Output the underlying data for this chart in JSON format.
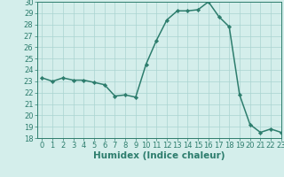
{
  "x": [
    0,
    1,
    2,
    3,
    4,
    5,
    6,
    7,
    8,
    9,
    10,
    11,
    12,
    13,
    14,
    15,
    16,
    17,
    18,
    19,
    20,
    21,
    22,
    23
  ],
  "y": [
    23.3,
    23.0,
    23.3,
    23.1,
    23.1,
    22.9,
    22.7,
    21.7,
    21.8,
    21.6,
    24.5,
    26.6,
    28.4,
    29.2,
    29.2,
    29.3,
    30.0,
    28.7,
    27.8,
    21.8,
    19.2,
    18.5,
    18.8,
    18.5
  ],
  "xlabel": "Humidex (Indice chaleur)",
  "ylim": [
    18,
    30
  ],
  "xlim": [
    -0.5,
    23
  ],
  "yticks": [
    18,
    19,
    20,
    21,
    22,
    23,
    24,
    25,
    26,
    27,
    28,
    29,
    30
  ],
  "xticks": [
    0,
    1,
    2,
    3,
    4,
    5,
    6,
    7,
    8,
    9,
    10,
    11,
    12,
    13,
    14,
    15,
    16,
    17,
    18,
    19,
    20,
    21,
    22,
    23
  ],
  "line_color": "#2d7d6d",
  "marker_color": "#2d7d6d",
  "bg_color": "#d4eeeb",
  "grid_color": "#aad4d0",
  "tick_label_color": "#2d7d6d",
  "xlabel_color": "#2d7d6d",
  "xlabel_fontsize": 7.5,
  "tick_fontsize": 6.0,
  "line_width": 1.1,
  "marker_size": 2.2
}
